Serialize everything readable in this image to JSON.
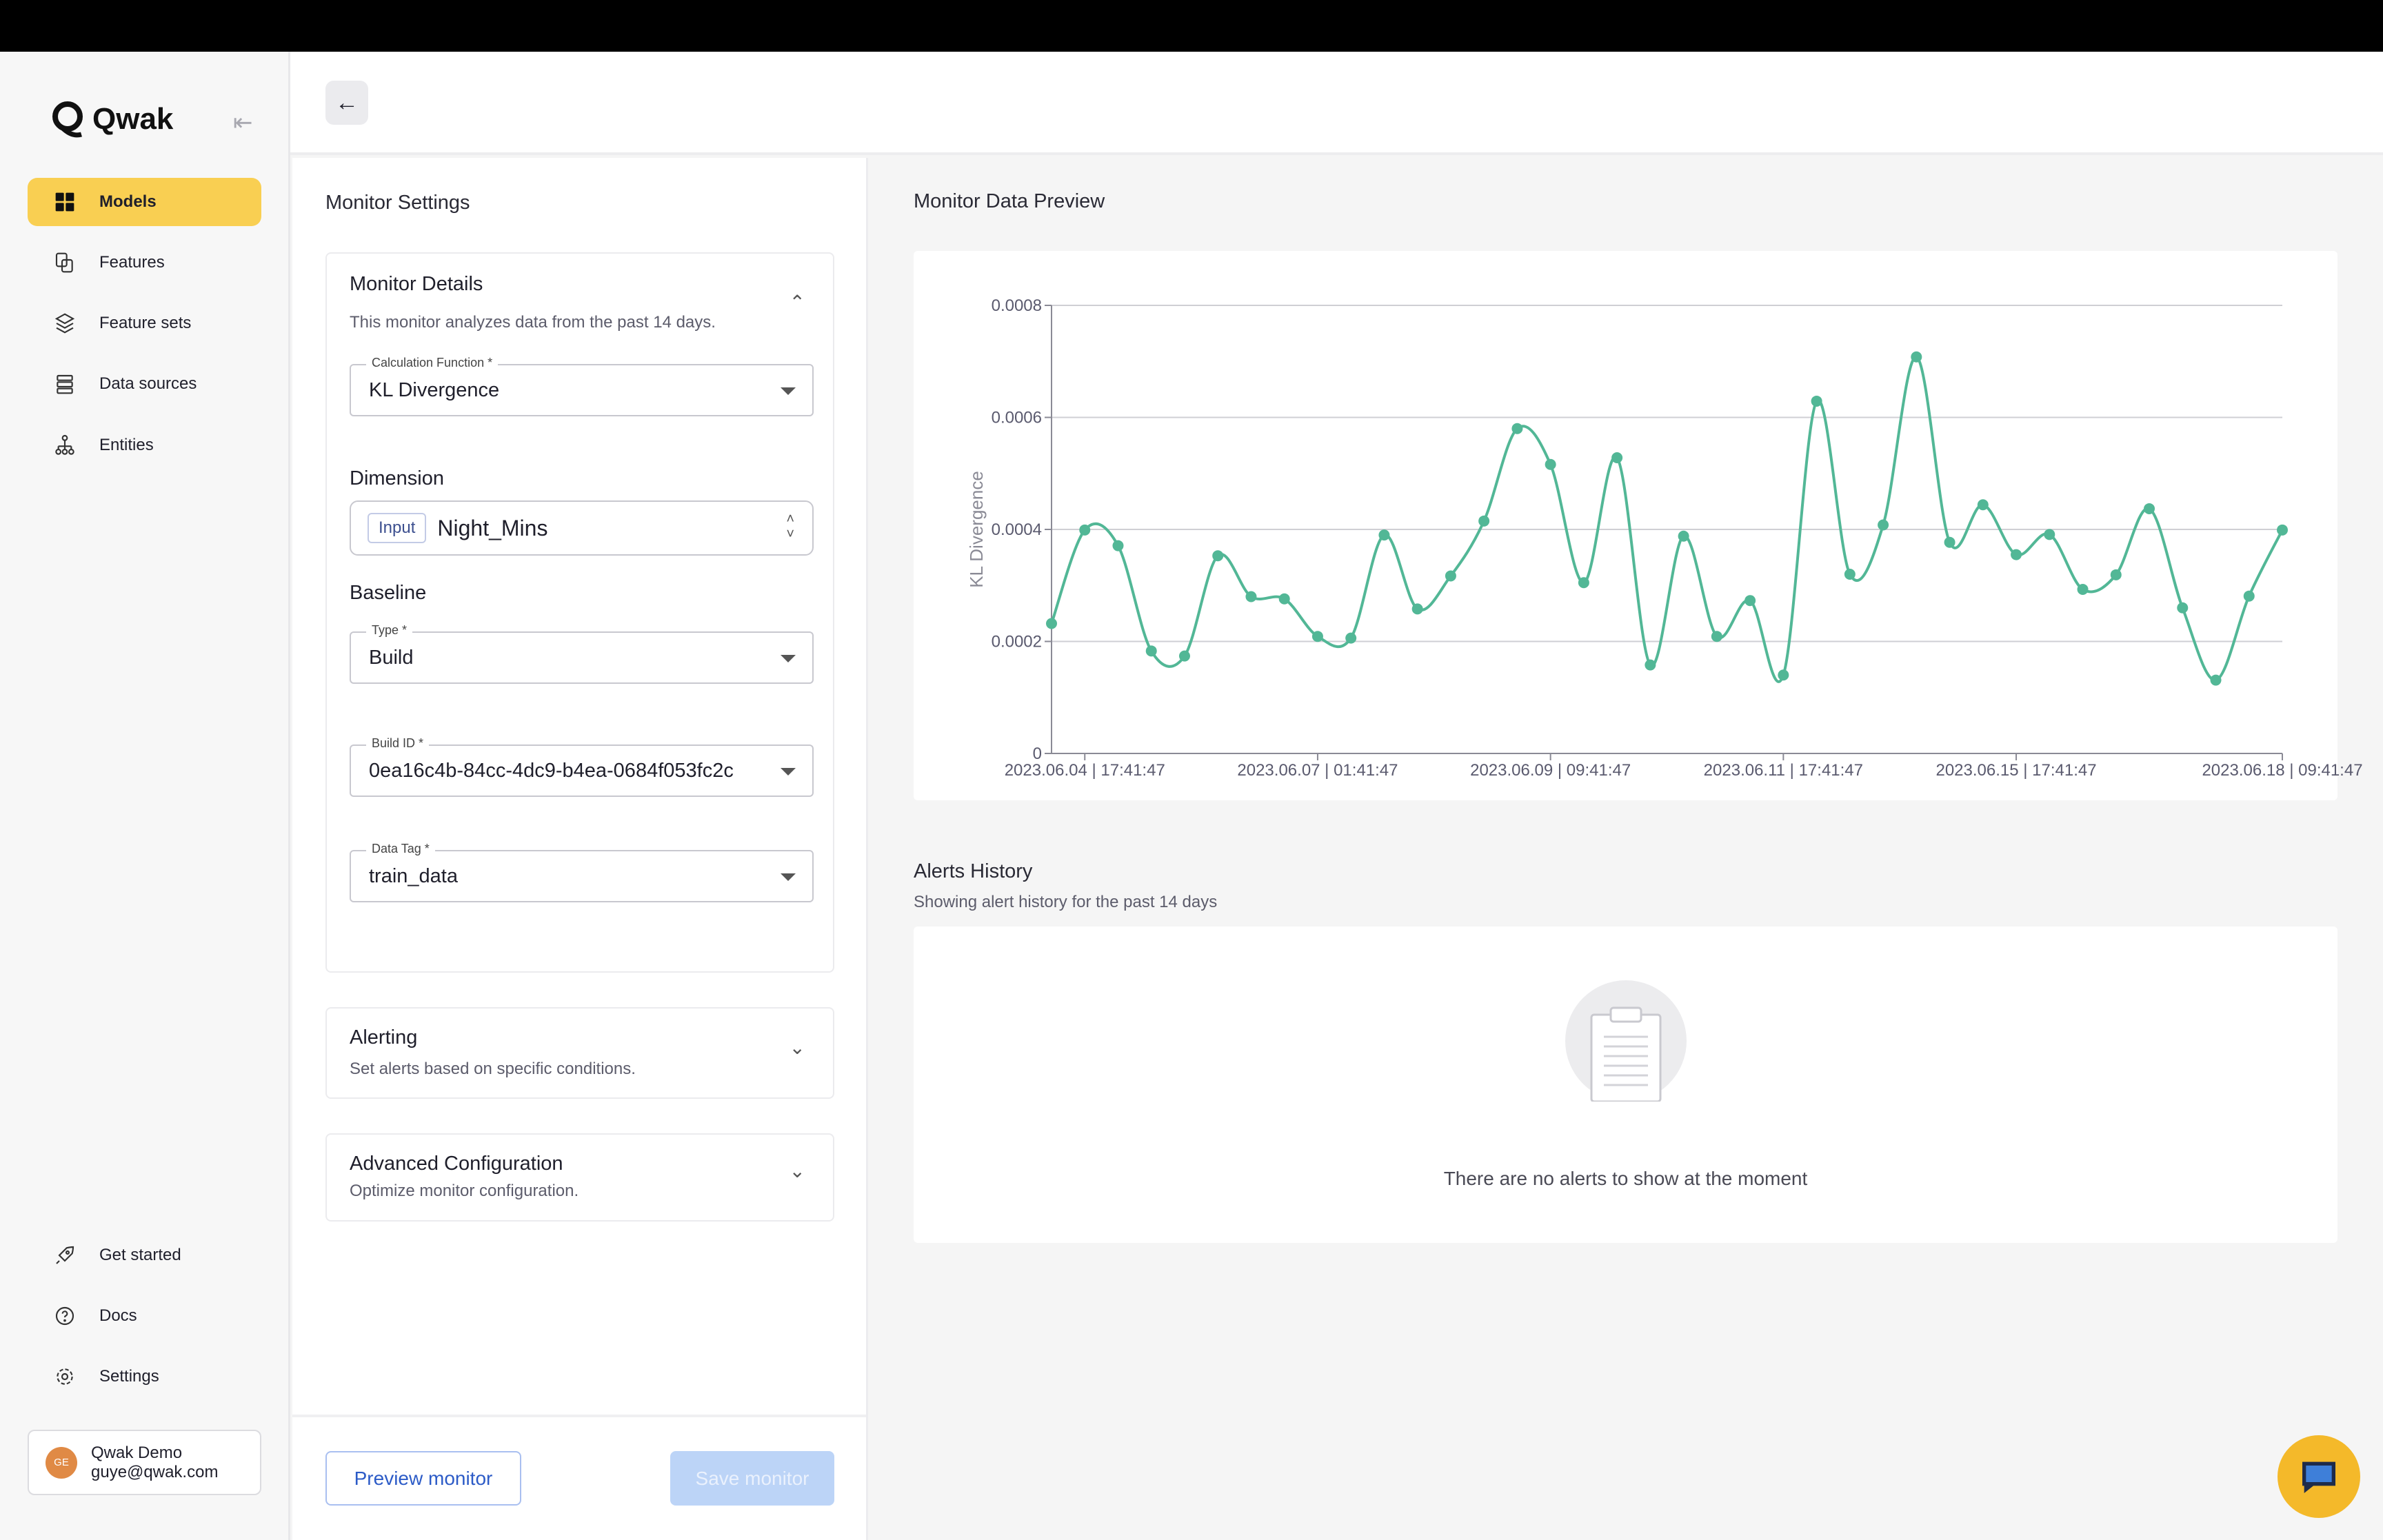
{
  "brand": {
    "name": "Qwak"
  },
  "sidebar": {
    "items": [
      {
        "label": "Models",
        "icon": "grid-icon",
        "active": true
      },
      {
        "label": "Features",
        "icon": "copy-icon"
      },
      {
        "label": "Feature sets",
        "icon": "layers-icon"
      },
      {
        "label": "Data sources",
        "icon": "database-icon"
      },
      {
        "label": "Entities",
        "icon": "hierarchy-icon"
      }
    ],
    "bottom": [
      {
        "label": "Get started",
        "icon": "rocket-icon"
      },
      {
        "label": "Docs",
        "icon": "help-circle-icon"
      },
      {
        "label": "Settings",
        "icon": "gear-icon"
      }
    ],
    "user": {
      "initials": "GE",
      "name": "Qwak Demo",
      "email": "guye@qwak.com"
    }
  },
  "settings": {
    "title": "Monitor Settings",
    "details": {
      "title": "Monitor Details",
      "subtitle": "This monitor analyzes data from the past 14 days.",
      "calc_label": "Calculation Function *",
      "calc_value": "KL Divergence",
      "dimension_label": "Dimension",
      "dimension_tag": "Input",
      "dimension_value": "Night_Mins",
      "baseline_label": "Baseline",
      "type_label": "Type *",
      "type_value": "Build",
      "build_label": "Build ID *",
      "build_value": "0ea16c4b-84cc-4dc9-b4ea-0684f053fc2c",
      "tag_label": "Data Tag *",
      "tag_value": "train_data"
    },
    "alerting": {
      "title": "Alerting",
      "subtitle": "Set alerts based on specific conditions."
    },
    "advanced": {
      "title": "Advanced Configuration",
      "subtitle": "Optimize monitor configuration."
    },
    "preview_button": "Preview monitor",
    "save_button": "Save monitor"
  },
  "preview": {
    "title": "Monitor Data Preview"
  },
  "alerts": {
    "title": "Alerts History",
    "subtitle": "Showing alert history for the past 14 days",
    "empty": "There are no alerts to show at the moment"
  },
  "colors": {
    "accent": "#f9cf52",
    "line": "#52b796",
    "primary": "#2c5bc7"
  },
  "chart_data": {
    "type": "line",
    "ylabel": "KL Divergence",
    "ylim": [
      0,
      0.0008
    ],
    "yticks": [
      "0",
      "0.0002",
      "0.0004",
      "0.0006",
      "0.0008"
    ],
    "xticks": [
      {
        "index": 1,
        "label": "2023.06.04 | 17:41:47"
      },
      {
        "index": 8,
        "label": "2023.06.07 | 01:41:47"
      },
      {
        "index": 15,
        "label": "2023.06.09 | 09:41:47"
      },
      {
        "index": 22,
        "label": "2023.06.11 | 17:41:47"
      },
      {
        "index": 29,
        "label": "2023.06.15 | 17:41:47"
      },
      {
        "index": 37,
        "label": "2023.06.18 | 09:41:47"
      }
    ],
    "grid": true,
    "values": [
      0.000232,
      0.000399,
      0.000371,
      0.000183,
      0.000174,
      0.000353,
      0.00028,
      0.000276,
      0.000209,
      0.000206,
      0.00039,
      0.000258,
      0.000317,
      0.000415,
      0.00058,
      0.000516,
      0.000305,
      0.000528,
      0.000158,
      0.000388,
      0.000209,
      0.000273,
      0.00014,
      0.000629,
      0.00032,
      0.000408,
      0.000708,
      0.000377,
      0.000444,
      0.000355,
      0.000391,
      0.000293,
      0.000319,
      0.000437,
      0.00026,
      0.000131,
      0.000281,
      0.000399
    ]
  }
}
